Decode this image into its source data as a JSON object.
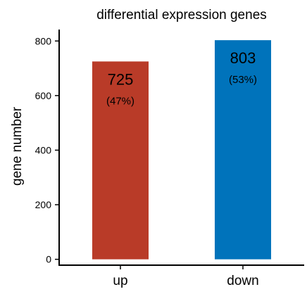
{
  "chart_data": {
    "type": "bar",
    "title": "differential expression genes",
    "xlabel": "",
    "ylabel": "gene number",
    "categories": [
      "up",
      "down"
    ],
    "values": [
      725,
      803
    ],
    "value_labels": [
      "725",
      "803"
    ],
    "percent_labels": [
      "(47%)",
      "(53%)"
    ],
    "colors": [
      "#B93B28",
      "#0073BB"
    ],
    "ylim": [
      -21.5,
      842
    ],
    "yticks": [
      0,
      200,
      400,
      600,
      800
    ],
    "ytick_labels": [
      "0",
      "200",
      "400",
      "600",
      "800"
    ],
    "grid": false,
    "legend": "none"
  }
}
